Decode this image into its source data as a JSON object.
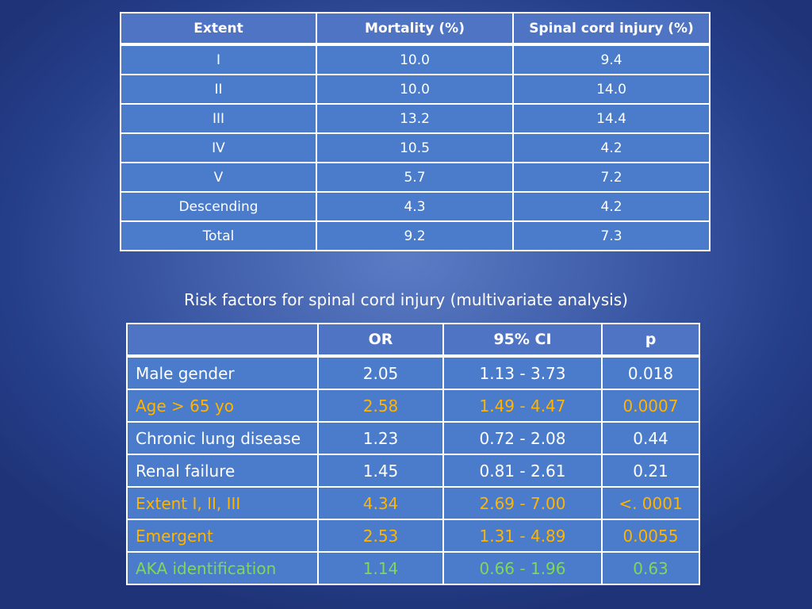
{
  "colors": {
    "white": "#ffffff",
    "orange": "#ffb400",
    "green": "#7ed957",
    "cell_blue": "#4a7ccb"
  },
  "table1": {
    "headers": [
      "Extent",
      "Mortality (%)",
      "Spinal cord injury (%)"
    ],
    "rows": [
      [
        "I",
        "10.0",
        "9.4"
      ],
      [
        "II",
        "10.0",
        "14.0"
      ],
      [
        "III",
        "13.2",
        "14.4"
      ],
      [
        "IV",
        "10.5",
        "4.2"
      ],
      [
        "V",
        "5.7",
        "7.2"
      ],
      [
        "Descending",
        "4.3",
        "4.2"
      ],
      [
        "Total",
        "9.2",
        "7.3"
      ]
    ]
  },
  "caption": "Risk factors for spinal cord injury (multivariate analysis)",
  "table2": {
    "headers": [
      "",
      "OR",
      "95% CI",
      "p"
    ],
    "rows": [
      {
        "cells": [
          "Male gender",
          "2.05",
          "1.13 - 3.73",
          "0.018"
        ],
        "color": "white"
      },
      {
        "cells": [
          "Age > 65 yo",
          "2.58",
          "1.49 - 4.47",
          "0.0007"
        ],
        "color": "orange"
      },
      {
        "cells": [
          "Chronic  lung disease",
          "1.23",
          "0.72 - 2.08",
          "0.44"
        ],
        "color": "white"
      },
      {
        "cells": [
          "Renal failure",
          "1.45",
          "0.81 - 2.61",
          "0.21"
        ],
        "color": "white"
      },
      {
        "cells": [
          "Extent I, II, III",
          "4.34",
          "2.69 - 7.00",
          "<. 0001"
        ],
        "color": "orange"
      },
      {
        "cells": [
          "Emergent",
          "2.53",
          "1.31 - 4.89",
          "0.0055"
        ],
        "color": "orange"
      },
      {
        "cells": [
          "AKA identification",
          "1.14",
          "0.66 - 1.96",
          "0.63"
        ],
        "color": "green"
      }
    ]
  }
}
